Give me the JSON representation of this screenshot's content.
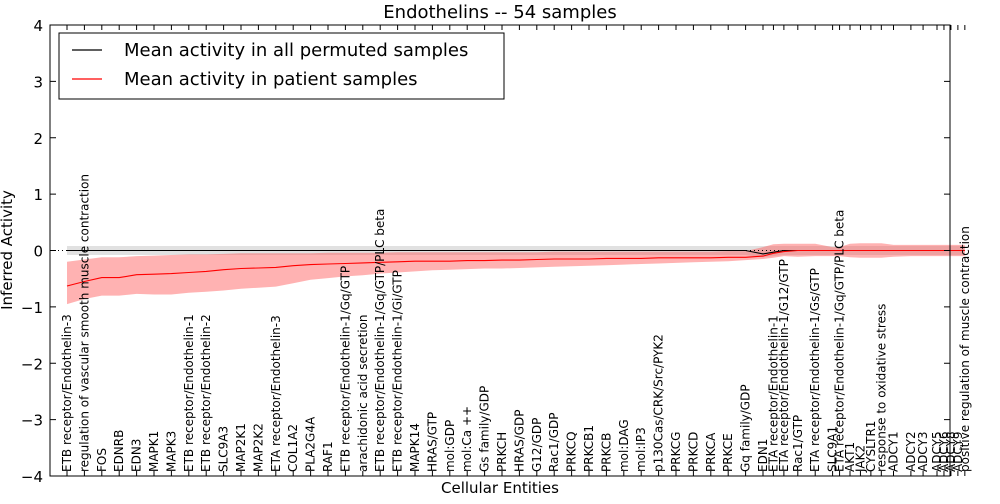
{
  "chart_data": {
    "type": "line",
    "title": "Endothelins -- 54 samples",
    "xlabel": "Cellular Entities",
    "ylabel": "Inferred Activity",
    "ylim": [
      -4,
      4
    ],
    "yticks": [
      4,
      3,
      2,
      1,
      0,
      -1,
      -2,
      -3,
      -4
    ],
    "ytick_labels": [
      "4",
      "3",
      "2",
      "1",
      "0",
      "−1",
      "−2",
      "−3",
      "−4"
    ],
    "zero_line": "dotted",
    "legend_placement": "top-left",
    "legend": [
      {
        "label": "Mean activity in all permuted samples",
        "color": "#000000"
      },
      {
        "label": "Mean activity in patient samples",
        "color": "#ff0000"
      }
    ],
    "categories": [
      "ETB receptor/Endothelin-3",
      "regulation of vascular smooth muscle contraction",
      "FOS",
      "EDNRB",
      "EDN3",
      "MAPK1",
      "MAPK3",
      "ETB receptor/Endothelin-1",
      "ETB receptor/Endothelin-2",
      "SLC9A3",
      "MAP2K1",
      "MAP2K2",
      "ETA receptor/Endothelin-3",
      "COL1A2",
      "PLA2G4A",
      "RAF1",
      "ETB receptor/Endothelin-1/Gq/GTP",
      "arachidonic acid secretion",
      "ETB receptor/Endothelin-1/Gq/GTP/PLC beta",
      "ETB receptor/Endothelin-1/Gi/GTP",
      "MAPK14",
      "HRAS/GTP",
      "mol:GDP",
      "mol:Ca ++",
      "Gs family/GDP",
      "PRKCH",
      "HRAS/GDP",
      "G12/GDP",
      "Rac1/GDP",
      "PRKCQ",
      "PRKCB1",
      "PRKCB",
      "mol:DAG",
      "mol:IP3",
      "p130Cas/CRK/Src/PYK2",
      "PRKCG",
      "PRKCD",
      "PRKCA",
      "PRKCE",
      "Gq family/GDP",
      "EDN1",
      "ETA receptor/Endothelin-1",
      "ETA receptor/Endothelin-1/G12/GTP",
      "Rac1/GTP",
      "ETA receptor/Endothelin-1/Gs/GTP",
      "SLC9A1",
      "ETA receptor/Endothelin-1/Gq/GTP/PLC beta",
      "AKT1",
      "JAK2",
      "CYSLTR1",
      "response to oxidative stress",
      "ADCY1",
      "ADCY2",
      "ADCY3",
      "ADCY5",
      "ADCY6",
      "ADCY8",
      "ADCY9",
      "positive regulation of muscle contraction"
    ],
    "x": [
      0,
      1,
      2,
      3,
      4,
      5,
      6,
      7,
      8,
      9,
      10,
      11,
      12,
      13,
      14,
      15,
      16,
      17,
      18,
      19,
      20,
      21,
      22,
      23,
      24,
      25,
      26,
      27,
      28,
      29,
      30,
      31,
      32,
      33,
      34,
      35,
      36,
      37,
      38,
      39,
      40,
      40.6,
      41.2,
      42,
      43,
      44,
      44.4,
      45,
      45.6,
      46.2,
      46.8,
      47.5,
      48.5,
      49.2,
      50,
      50.4,
      50.8,
      51.2,
      51.6
    ],
    "series": [
      {
        "name": "Mean activity in all permuted samples",
        "color": "#000000",
        "values": [
          0,
          0,
          0,
          0,
          0,
          0,
          0,
          0,
          0,
          0,
          0,
          0,
          0,
          0,
          0,
          0,
          0,
          0,
          0,
          0,
          0,
          0,
          0,
          0,
          0,
          0,
          0,
          0,
          0,
          0,
          0,
          0,
          0,
          0,
          0,
          0,
          0,
          0,
          0,
          0,
          -0.06,
          -0.03,
          0,
          0,
          0,
          0,
          0,
          0,
          0,
          0,
          0,
          0,
          0,
          0,
          0,
          0,
          0,
          0,
          0
        ],
        "band_low": [
          -0.08,
          -0.08,
          -0.08,
          -0.08,
          -0.08,
          -0.08,
          -0.08,
          -0.08,
          -0.08,
          -0.08,
          -0.08,
          -0.08,
          -0.08,
          -0.08,
          -0.08,
          -0.08,
          -0.08,
          -0.08,
          -0.08,
          -0.08,
          -0.08,
          -0.08,
          -0.08,
          -0.08,
          -0.08,
          -0.08,
          -0.08,
          -0.08,
          -0.08,
          -0.08,
          -0.08,
          -0.08,
          -0.08,
          -0.08,
          -0.08,
          -0.08,
          -0.08,
          -0.08,
          -0.08,
          -0.08,
          -0.12,
          -0.1,
          -0.08,
          -0.08,
          -0.08,
          -0.08,
          -0.08,
          -0.08,
          -0.08,
          -0.08,
          -0.08,
          -0.08,
          -0.08,
          -0.08,
          -0.08,
          -0.08,
          -0.08,
          -0.08,
          -0.08
        ],
        "band_high": [
          0.08,
          0.08,
          0.08,
          0.08,
          0.08,
          0.08,
          0.08,
          0.08,
          0.08,
          0.08,
          0.08,
          0.08,
          0.08,
          0.08,
          0.08,
          0.08,
          0.08,
          0.08,
          0.08,
          0.08,
          0.08,
          0.08,
          0.08,
          0.08,
          0.08,
          0.08,
          0.08,
          0.08,
          0.08,
          0.08,
          0.08,
          0.08,
          0.08,
          0.08,
          0.08,
          0.08,
          0.08,
          0.08,
          0.08,
          0.08,
          0.08,
          0.08,
          0.08,
          0.08,
          0.08,
          0.08,
          0.08,
          0.08,
          0.08,
          0.08,
          0.08,
          0.08,
          0.08,
          0.08,
          0.08,
          0.08,
          0.08,
          0.08,
          0.08
        ]
      },
      {
        "name": "Mean activity in patient samples",
        "color": "#ff0000",
        "values": [
          -0.63,
          -0.55,
          -0.48,
          -0.48,
          -0.43,
          -0.42,
          -0.41,
          -0.39,
          -0.37,
          -0.34,
          -0.32,
          -0.31,
          -0.3,
          -0.27,
          -0.25,
          -0.24,
          -0.23,
          -0.22,
          -0.21,
          -0.2,
          -0.19,
          -0.19,
          -0.19,
          -0.18,
          -0.18,
          -0.17,
          -0.17,
          -0.16,
          -0.15,
          -0.15,
          -0.15,
          -0.14,
          -0.14,
          -0.14,
          -0.13,
          -0.13,
          -0.13,
          -0.13,
          -0.12,
          -0.12,
          -0.1,
          -0.05,
          -0.02,
          0,
          0,
          0,
          0,
          0,
          0,
          0,
          0,
          0,
          0,
          0,
          0,
          0,
          0,
          0,
          0
        ],
        "band_low": [
          -0.95,
          -0.86,
          -0.8,
          -0.8,
          -0.77,
          -0.78,
          -0.78,
          -0.75,
          -0.73,
          -0.71,
          -0.68,
          -0.66,
          -0.64,
          -0.58,
          -0.52,
          -0.49,
          -0.46,
          -0.44,
          -0.41,
          -0.39,
          -0.37,
          -0.35,
          -0.34,
          -0.33,
          -0.32,
          -0.32,
          -0.31,
          -0.3,
          -0.29,
          -0.28,
          -0.27,
          -0.26,
          -0.25,
          -0.24,
          -0.23,
          -0.22,
          -0.21,
          -0.2,
          -0.19,
          -0.17,
          -0.15,
          -0.13,
          -0.1,
          -0.11,
          -0.1,
          -0.1,
          -0.1,
          -0.12,
          -0.13,
          -0.13,
          -0.13,
          -0.11,
          -0.1,
          -0.1,
          -0.1,
          -0.1,
          -0.1,
          -0.1,
          -0.1
        ],
        "band_high": [
          -0.2,
          -0.16,
          -0.12,
          -0.12,
          -0.1,
          -0.09,
          -0.08,
          -0.07,
          -0.07,
          -0.06,
          -0.05,
          -0.05,
          -0.05,
          -0.05,
          -0.05,
          -0.04,
          -0.04,
          -0.04,
          -0.04,
          -0.03,
          -0.03,
          -0.03,
          -0.03,
          -0.03,
          -0.03,
          -0.03,
          -0.03,
          -0.03,
          -0.02,
          -0.02,
          -0.02,
          -0.02,
          -0.02,
          -0.02,
          -0.02,
          -0.02,
          -0.02,
          -0.02,
          -0.01,
          -0.01,
          0.06,
          0.11,
          0.12,
          0.12,
          0.12,
          0.06,
          0.06,
          0.12,
          0.13,
          0.13,
          0.13,
          0.1,
          0.1,
          0.1,
          0.1,
          0.1,
          0.1,
          0.1,
          0.1
        ]
      }
    ]
  }
}
